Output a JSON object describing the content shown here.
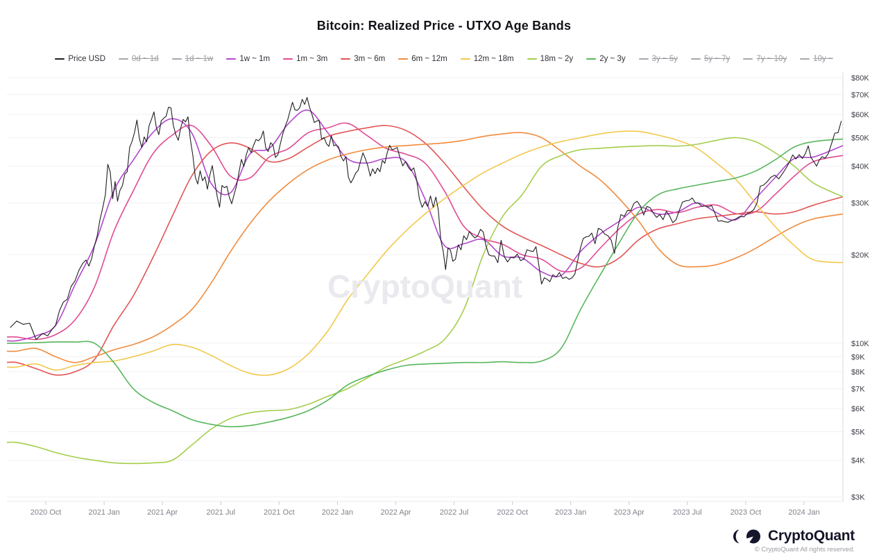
{
  "header": {
    "title": "Bitcoin: Realized Price - UTXO Age Bands"
  },
  "watermark": {
    "text": "CryptoQuant"
  },
  "footer": {
    "brand": "CryptoQuant",
    "copyright": "© CryptoQuant All rights reserved."
  },
  "legend": [
    {
      "label": "Price USD",
      "color": "#1f1f23",
      "active": true
    },
    {
      "label": "0d ~ 1d",
      "color": "#8c8c94",
      "active": false
    },
    {
      "label": "1d ~ 1w",
      "color": "#8c8c94",
      "active": false
    },
    {
      "label": "1w ~ 1m",
      "color": "#b146cc",
      "active": true
    },
    {
      "label": "1m ~ 3m",
      "color": "#e04a92",
      "active": true
    },
    {
      "label": "3m ~ 6m",
      "color": "#e25454",
      "active": true
    },
    {
      "label": "6m ~ 12m",
      "color": "#f08b3d",
      "active": true
    },
    {
      "label": "12m ~ 18m",
      "color": "#f2c84b",
      "active": true
    },
    {
      "label": "18m ~ 2y",
      "color": "#a4cd4a",
      "active": true
    },
    {
      "label": "2y ~ 3y",
      "color": "#57b65c",
      "active": true
    },
    {
      "label": "3y ~ 5y",
      "color": "#8c8c94",
      "active": false
    },
    {
      "label": "5y ~ 7y",
      "color": "#8c8c94",
      "active": false
    },
    {
      "label": "7y ~ 10y",
      "color": "#8c8c94",
      "active": false
    },
    {
      "label": "10y ~",
      "color": "#8c8c94",
      "active": false
    }
  ],
  "chart_data": {
    "type": "line",
    "title": "Bitcoin: Realized Price - UTXO Age Bands",
    "y_scale": "log",
    "grid": "horizontal-only",
    "legend_position": "top",
    "units": "USD thousands",
    "x_start_month": "2020-08",
    "x_end_month": "2024-02",
    "y_axis": {
      "side": "right",
      "ticks": [
        {
          "label": "$80K",
          "value": 80
        },
        {
          "label": "$70K",
          "value": 70
        },
        {
          "label": "$60K",
          "value": 60
        },
        {
          "label": "$50K",
          "value": 50
        },
        {
          "label": "$40K",
          "value": 40
        },
        {
          "label": "$30K",
          "value": 30
        },
        {
          "label": "$20K",
          "value": 20
        },
        {
          "label": "$10K",
          "value": 10
        },
        {
          "label": "$9K",
          "value": 9
        },
        {
          "label": "$8K",
          "value": 8
        },
        {
          "label": "$7K",
          "value": 7
        },
        {
          "label": "$6K",
          "value": 6
        },
        {
          "label": "$5K",
          "value": 5
        },
        {
          "label": "$4K",
          "value": 4
        },
        {
          "label": "$3K",
          "value": 3
        }
      ]
    },
    "x_axis": {
      "ticks": [
        {
          "label": "2020 Oct",
          "month": 2
        },
        {
          "label": "2021 Jan",
          "month": 5
        },
        {
          "label": "2021 Apr",
          "month": 8
        },
        {
          "label": "2021 Jul",
          "month": 11
        },
        {
          "label": "2021 Oct",
          "month": 14
        },
        {
          "label": "2022 Jan",
          "month": 17
        },
        {
          "label": "2022 Apr",
          "month": 20
        },
        {
          "label": "2022 Jul",
          "month": 23
        },
        {
          "label": "2022 Oct",
          "month": 26
        },
        {
          "label": "2023 Jan",
          "month": 29
        },
        {
          "label": "2023 Apr",
          "month": 32
        },
        {
          "label": "2023 Jul",
          "month": 35
        },
        {
          "label": "2023 Oct",
          "month": 38
        },
        {
          "label": "2024 Jan",
          "month": 41
        }
      ]
    },
    "series": [
      {
        "name": "1w ~ 1m",
        "color": "#b146cc",
        "monthly": [
          10.2,
          10.6,
          11.5,
          15.8,
          21.5,
          33,
          42,
          52,
          58,
          52,
          35,
          32.5,
          44,
          46,
          56,
          62,
          52,
          42.5,
          41,
          42.5,
          41.5,
          31,
          21.5,
          21.8,
          22.5,
          19.8,
          19.5,
          17.5,
          17,
          20.5,
          23.5,
          26,
          29,
          27.5,
          28,
          30,
          27.8,
          26.3,
          31,
          36.5,
          42.5,
          43,
          47
        ]
      },
      {
        "name": "1m ~ 3m",
        "color": "#e04a92",
        "monthly": [
          10.5,
          10.3,
          10.7,
          12,
          15.5,
          24,
          33,
          44,
          51,
          55,
          47,
          37,
          36.5,
          43,
          46,
          52,
          54,
          56,
          51,
          46,
          44,
          41,
          33,
          25,
          22.7,
          21.7,
          20,
          19.3,
          17.6,
          18,
          21,
          24.5,
          27.5,
          28.5,
          27.8,
          29,
          29.5,
          27.6,
          28,
          32,
          37,
          41.5,
          43.5
        ]
      },
      {
        "name": "3m ~ 6m",
        "color": "#e25454",
        "monthly": [
          8.6,
          8.2,
          7.8,
          8.0,
          8.8,
          11.5,
          14.5,
          19.5,
          27,
          37,
          45,
          48,
          46,
          41.5,
          42.5,
          46.5,
          50.5,
          52.5,
          54,
          55,
          53,
          48,
          41,
          34,
          28.5,
          25,
          23,
          21.5,
          20,
          18.7,
          18.2,
          19.5,
          22.5,
          24.5,
          25.5,
          26.5,
          27,
          27.5,
          28,
          27.5,
          28,
          29.5,
          31.5
        ]
      },
      {
        "name": "6m ~ 12m",
        "color": "#f08b3d",
        "monthly": [
          9.4,
          9.6,
          9.0,
          8.6,
          9.0,
          9.5,
          9.9,
          10.5,
          11.5,
          13,
          16,
          20.5,
          25.5,
          30.5,
          35,
          39,
          42,
          44,
          45.5,
          46.5,
          47,
          47.5,
          48,
          49,
          50.5,
          51.5,
          52,
          50,
          45,
          40,
          36,
          31,
          26,
          21,
          18.5,
          18.2,
          18.5,
          19.5,
          21,
          23,
          25,
          26.5,
          27.5
        ]
      },
      {
        "name": "12m ~ 18m",
        "color": "#f2c84b",
        "monthly": [
          8.3,
          8.5,
          8.1,
          8.4,
          8.6,
          8.7,
          9.0,
          9.4,
          9.9,
          9.7,
          9.1,
          8.4,
          7.9,
          7.8,
          8.2,
          9.2,
          11,
          14,
          17,
          20.5,
          24,
          27.5,
          31,
          34.5,
          38,
          41,
          44,
          46.5,
          48.5,
          50,
          51.5,
          52.5,
          52.5,
          51,
          49,
          46,
          41,
          36,
          30,
          25,
          21.5,
          19.2,
          18.8
        ]
      },
      {
        "name": "18m ~ 2y",
        "color": "#a4cd4a",
        "monthly": [
          4.6,
          4.45,
          4.25,
          4.1,
          4.0,
          3.92,
          3.9,
          3.92,
          4.0,
          4.5,
          5.1,
          5.55,
          5.8,
          5.9,
          5.95,
          6.2,
          6.6,
          7.0,
          7.6,
          8.3,
          8.8,
          9.4,
          10.3,
          13,
          20,
          27,
          32,
          40,
          43.5,
          45.5,
          46,
          46.5,
          46.8,
          47,
          46.8,
          47.5,
          49,
          50,
          48.5,
          44.5,
          40,
          35,
          31.5
        ]
      },
      {
        "name": "2y ~ 3y",
        "color": "#57b65c",
        "monthly": [
          10.0,
          10.05,
          10.1,
          10.1,
          10.0,
          8.6,
          7.0,
          6.3,
          5.9,
          5.5,
          5.3,
          5.2,
          5.25,
          5.4,
          5.6,
          5.9,
          6.4,
          7.2,
          7.7,
          8.1,
          8.4,
          8.5,
          8.55,
          8.6,
          8.6,
          8.65,
          8.6,
          8.7,
          9.6,
          13,
          17,
          22,
          28,
          32,
          33.5,
          34.5,
          35.5,
          36.5,
          38.5,
          42,
          46.5,
          48.5,
          49.5
        ]
      }
    ],
    "price_usd": {
      "name": "Price USD",
      "color": "#1f1f23",
      "monthly_points": [
        [
          11.3,
          11.9,
          11.6
        ],
        [
          11.7,
          10.3,
          10.8
        ],
        [
          10.6,
          11.1,
          11.5,
          12.9,
          13.8
        ],
        [
          14.1,
          15.6,
          16.3,
          17.7,
          18.7
        ],
        [
          19.2,
          18.3,
          19.4,
          21.4,
          23.2,
          26.3,
          28.9
        ],
        [
          32,
          40.6,
          38.2,
          31,
          35.5,
          30.4,
          33.1,
          34.3
        ],
        [
          37.6,
          38.3,
          46.4,
          48.6,
          52.1,
          57.4,
          49.7,
          46.3
        ],
        [
          50.3,
          48.4,
          54.9,
          57.8,
          61.2,
          54.1,
          51.2,
          57.1
        ],
        [
          58.2,
          59.1,
          63.5,
          63.1,
          55,
          51.1,
          49,
          54
        ],
        [
          57.7,
          56.6,
          58.9,
          49.1,
          43.5,
          36.7,
          34.8,
          38.6
        ],
        [
          35.7,
          36.8,
          33.4,
          37.3,
          40.2,
          35.5,
          31.6,
          29
        ],
        [
          34.4,
          33.8,
          34.2,
          31.4,
          29.8,
          32.1,
          34.3,
          38.2
        ],
        [
          42.2,
          39.9,
          43.8,
          46.3,
          44.5,
          47.1,
          49.3,
          48.8
        ],
        [
          49.9,
          52.7,
          46.1,
          44.9,
          48.1,
          47.1,
          42.8,
          43.8
        ],
        [
          47.7,
          51.5,
          54.7,
          57.4,
          61.7,
          66,
          62.2,
          61.9
        ],
        [
          63.3,
          67.5,
          64.9,
          68.5,
          63.6,
          60.1,
          56.3,
          57
        ],
        [
          57.2,
          49.4,
          50.1,
          47.7,
          46.7,
          50.8,
          46.9,
          47.3
        ],
        [
          46.5,
          43.1,
          41.7,
          43.1,
          36.7,
          35.1,
          36.3,
          37.9
        ],
        [
          38.7,
          41.6,
          44.4,
          42.4,
          40.1,
          37,
          39.2,
          37.7
        ],
        [
          39.4,
          38.3,
          41.9,
          40.9,
          44.5,
          47.1,
          45.5,
          45.8
        ],
        [
          46.3,
          42.8,
          40.1,
          41.5,
          39.7,
          38.6,
          39.5
        ],
        [
          36,
          31,
          29,
          30.3,
          29.2,
          31.7,
          29
        ],
        [
          31.4,
          28.4,
          22.5,
          20.6,
          17.8,
          21.1,
          20.7,
          19
        ],
        [
          19.3,
          21.6,
          20.8,
          23.2,
          22.5,
          24,
          23.3
        ],
        [
          22.8,
          23.2,
          24.4,
          23.9,
          21.4,
          20,
          19.8
        ],
        [
          19.8,
          18.8,
          22.4,
          19.7,
          18.9,
          19.6
        ],
        [
          19.5,
          20.1,
          19.1,
          19.3,
          20.8,
          20.6
        ],
        [
          20.5,
          21.3,
          18.5,
          15.9,
          16.7,
          16.5,
          16.2
        ],
        [
          17.1,
          16.8,
          17.4,
          16.6,
          16.8,
          16.5
        ],
        [
          16.7,
          17.2,
          19.1,
          21.1,
          22.7,
          23,
          23.1
        ],
        [
          23.7,
          21.8,
          24.6,
          24.3,
          23.5,
          23.2
        ],
        [
          22.4,
          20.2,
          24.7,
          27.4,
          27,
          28.3
        ],
        [
          28.2,
          29.9,
          30.4,
          29.3,
          27.3,
          29.2
        ],
        [
          28.9,
          27.7,
          26.8,
          27.4,
          26.3,
          28.1
        ],
        [
          27.1,
          25.7,
          26.3,
          28.3,
          30.2,
          30.5
        ],
        [
          30.6,
          31.2,
          30,
          29.9,
          29.2,
          29.3
        ],
        [
          29.1,
          29.4,
          27.7,
          26,
          26.1,
          25.9
        ],
        [
          25.8,
          26.2,
          26.5,
          27,
          26.9
        ],
        [
          27.6,
          27.9,
          28.5,
          30,
          34.2,
          34.5
        ],
        [
          35.4,
          36.7,
          37.3,
          36.2,
          37.8
        ],
        [
          39.5,
          41.3,
          43.7,
          42.3,
          43.8,
          42.5
        ],
        [
          44.2,
          46.9,
          42.8,
          41.5,
          40,
          42,
          43.1
        ],
        [
          42.6,
          44.2,
          47.8,
          51.8,
          52,
          57
        ]
      ]
    }
  }
}
